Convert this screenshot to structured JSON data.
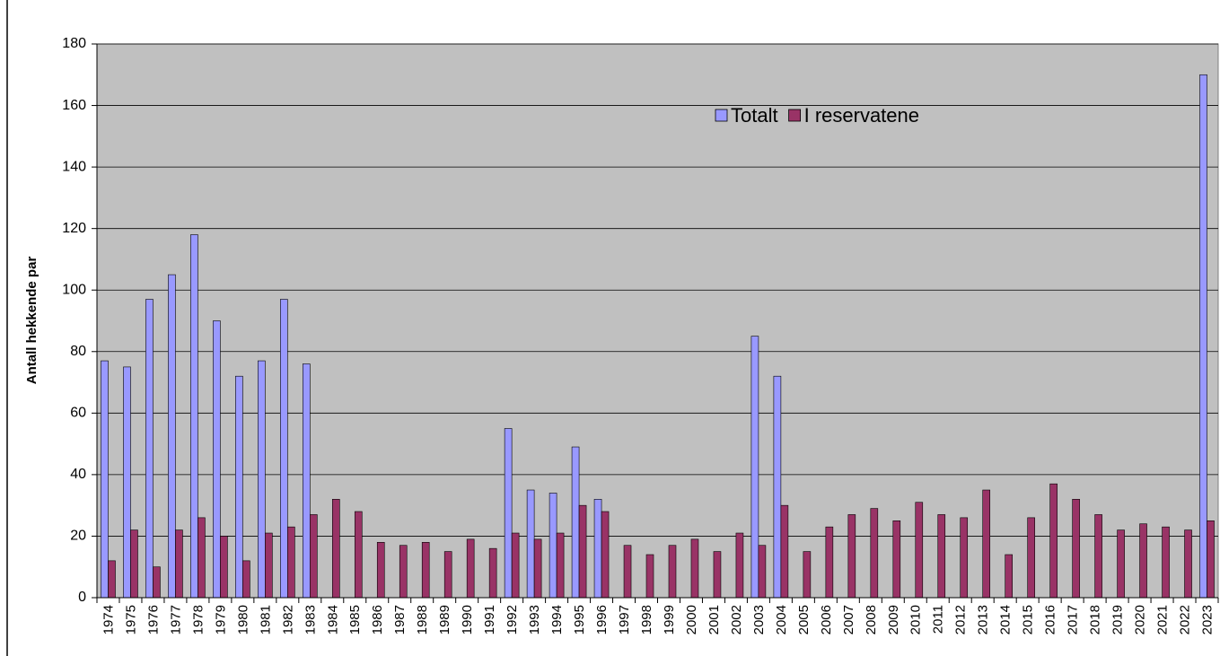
{
  "chart_data": {
    "type": "bar",
    "y_label": "Antall hekkende par",
    "categories": [
      "1974",
      "1975",
      "1976",
      "1977",
      "1978",
      "1979",
      "1980",
      "1981",
      "1982",
      "1983",
      "1984",
      "1985",
      "1986",
      "1987",
      "1988",
      "1989",
      "1990",
      "1991",
      "1992",
      "1993",
      "1994",
      "1995",
      "1996",
      "1997",
      "1998",
      "1999",
      "2000",
      "2001",
      "2002",
      "2003",
      "2004",
      "2005",
      "2006",
      "2007",
      "2008",
      "2009",
      "2010",
      "2011",
      "2012",
      "2013",
      "2014",
      "2015",
      "2016",
      "2017",
      "2018",
      "2019",
      "2020",
      "2021",
      "2022",
      "2023"
    ],
    "series": [
      {
        "name": "Totalt",
        "color": "#9999ff",
        "values": [
          77,
          75,
          97,
          105,
          118,
          90,
          72,
          77,
          97,
          76,
          null,
          null,
          null,
          null,
          null,
          null,
          null,
          null,
          55,
          35,
          34,
          49,
          32,
          null,
          null,
          null,
          null,
          null,
          null,
          85,
          72,
          null,
          null,
          null,
          null,
          null,
          null,
          null,
          null,
          null,
          null,
          null,
          null,
          null,
          null,
          null,
          null,
          null,
          null,
          170
        ]
      },
      {
        "name": "I reservatene",
        "color": "#993366",
        "values": [
          12,
          22,
          10,
          22,
          26,
          20,
          12,
          21,
          23,
          27,
          32,
          28,
          18,
          17,
          18,
          15,
          19,
          16,
          21,
          19,
          21,
          30,
          28,
          17,
          14,
          17,
          19,
          15,
          21,
          17,
          30,
          15,
          23,
          27,
          29,
          25,
          31,
          27,
          26,
          35,
          14,
          26,
          37,
          32,
          27,
          22,
          24,
          23,
          22,
          25
        ]
      }
    ],
    "ylim": [
      0,
      180
    ],
    "yticks": [
      0,
      20,
      40,
      60,
      80,
      100,
      120,
      140,
      160,
      180
    ],
    "grid": true,
    "plot_background": "#c0c0c0"
  }
}
